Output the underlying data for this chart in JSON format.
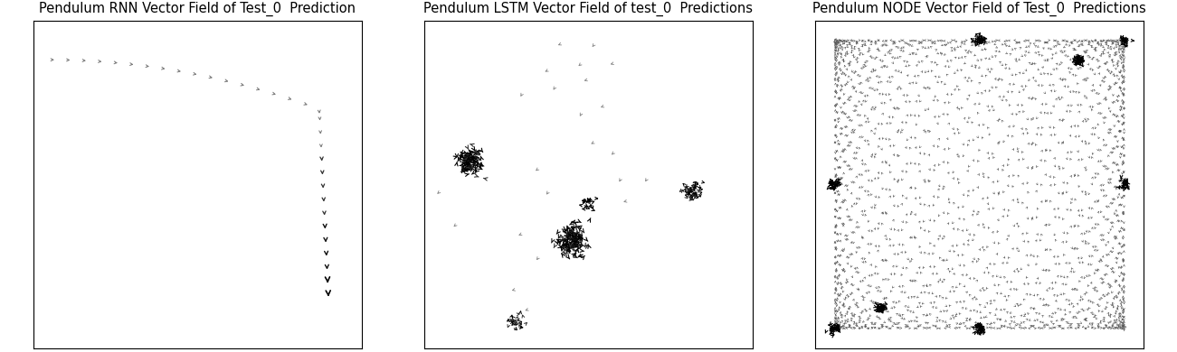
{
  "titles": [
    "Pendulum RNN Vector Field of Test_0  Prediction",
    "Pendulum LSTM Vector Field of test_0  Predictions",
    "Pendulum NODE Vector Field of Test_0  Predictions"
  ],
  "title_fontsize": 10.5,
  "figsize": [
    13.01,
    3.9
  ],
  "dpi": 100
}
